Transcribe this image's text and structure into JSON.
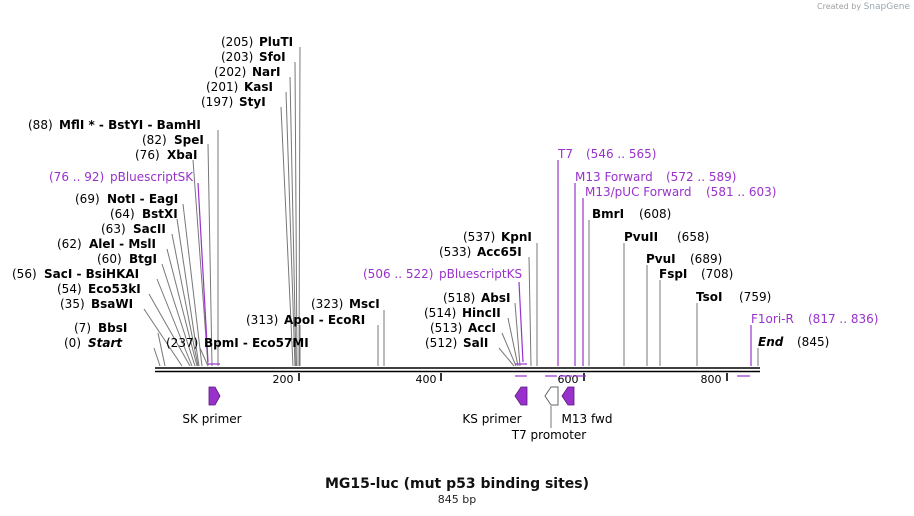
{
  "credit": {
    "prefix": "Created by",
    "brand": "SnapGene"
  },
  "title": "MG15-luc (mut p53 binding sites)",
  "size_label": "845 bp",
  "colors": {
    "feature": "#9932cc",
    "backbone": "#000000",
    "site_line": "#777777"
  },
  "sites": [
    {
      "id": "start",
      "pos": "(0)",
      "name": "Start",
      "italic": true
    },
    {
      "id": "bbsi",
      "pos": "(7)",
      "name": "BbsI"
    },
    {
      "id": "bsawi",
      "pos": "(35)",
      "name": "BsaWI"
    },
    {
      "id": "eco53ki",
      "pos": "(54)",
      "name": "Eco53kI"
    },
    {
      "id": "saci",
      "pos": "(56)",
      "name": "SacI  -  BsiHKAI"
    },
    {
      "id": "btgi",
      "pos": "(60)",
      "name": "BtgI"
    },
    {
      "id": "alei",
      "pos": "(62)",
      "name": "AleI  -  MslI"
    },
    {
      "id": "sacii",
      "pos": "(63)",
      "name": "SacII"
    },
    {
      "id": "bstxi",
      "pos": "(64)",
      "name": "BstXI"
    },
    {
      "id": "noti",
      "pos": "(69)",
      "name": "NotI  -  EagI"
    },
    {
      "id": "xbai",
      "pos": "(76)",
      "name": "XbaI"
    },
    {
      "id": "spei",
      "pos": "(82)",
      "name": "SpeI"
    },
    {
      "id": "mfli",
      "pos": "(88)",
      "name": "MflI * - BstYI  - BamHI"
    },
    {
      "id": "styi",
      "pos": "(197)",
      "name": "StyI"
    },
    {
      "id": "kasi",
      "pos": "(201)",
      "name": "KasI"
    },
    {
      "id": "nari",
      "pos": "(202)",
      "name": "NarI"
    },
    {
      "id": "sfoi",
      "pos": "(203)",
      "name": "SfoI"
    },
    {
      "id": "pluti",
      "pos": "(205)",
      "name": "PluTI"
    },
    {
      "id": "bpmi",
      "pos": "(237)",
      "name": "BpmI  -  Eco57MI"
    },
    {
      "id": "apoi",
      "pos": "(313)",
      "name": "ApoI  -  EcoRI"
    },
    {
      "id": "msci",
      "pos": "(323)",
      "name": "MscI"
    },
    {
      "id": "sali",
      "pos": "(512)",
      "name": "SalI"
    },
    {
      "id": "acci",
      "pos": "(513)",
      "name": "AccI"
    },
    {
      "id": "hincii",
      "pos": "(514)",
      "name": "HincII"
    },
    {
      "id": "absi",
      "pos": "(518)",
      "name": "AbsI"
    },
    {
      "id": "acc65i",
      "pos": "(533)",
      "name": "Acc65I"
    },
    {
      "id": "kpni",
      "pos": "(537)",
      "name": "KpnI"
    },
    {
      "id": "bmri",
      "pos": "(608)",
      "name": "BmrI"
    },
    {
      "id": "pvuii",
      "pos": "(658)",
      "name": "PvuII"
    },
    {
      "id": "pvui",
      "pos": "(689)",
      "name": "PvuI"
    },
    {
      "id": "fspi",
      "pos": "(708)",
      "name": "FspI"
    },
    {
      "id": "tsoi",
      "pos": "(759)",
      "name": "TsoI"
    },
    {
      "id": "end",
      "pos": "(845)",
      "name": "End",
      "italic": true
    }
  ],
  "features": [
    {
      "id": "pbskS",
      "name": "pBluescriptSK",
      "range": "(76 .. 92)",
      "name_first": false
    },
    {
      "id": "pbksS",
      "name": "pBluescriptKS",
      "range": "(506 .. 522)",
      "name_first": false
    },
    {
      "id": "t7",
      "name": "T7",
      "range": "(546 .. 565)",
      "name_first": true
    },
    {
      "id": "m13f",
      "name": "M13 Forward",
      "range": "(572 .. 589)",
      "name_first": true
    },
    {
      "id": "m13puc",
      "name": "M13/pUC Forward",
      "range": "(581 .. 603)",
      "name_first": true
    },
    {
      "id": "f1ori",
      "name": "F1ori-R",
      "range": "(817 .. 836)",
      "name_first": true
    }
  ],
  "ruler": {
    "ticks": [
      "200",
      "400",
      "600",
      "800"
    ]
  },
  "annotations": {
    "sk_primer": "SK primer",
    "ks_primer": "KS primer",
    "t7_promoter": "T7 promoter",
    "m13_fwd": "M13 fwd"
  }
}
